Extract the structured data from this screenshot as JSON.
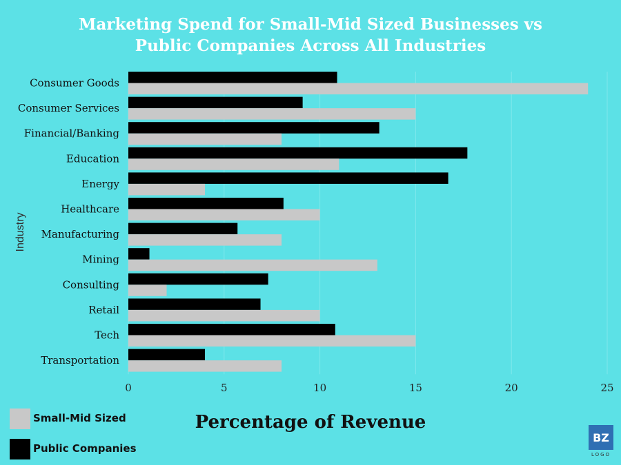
{
  "colors": {
    "background": "#5ce1e6",
    "small_mid": "#c8c8c8",
    "public": "#000000",
    "gridline": "#7fe8ec",
    "logo": "#2f6fb3"
  },
  "chart_data": {
    "type": "bar",
    "orientation": "horizontal",
    "title": "Marketing Spend for Small-Mid Sized Businesses vs Public Companies Across All Industries",
    "title_lines": [
      "Marketing Spend for Small-Mid Sized Businesses vs",
      "Public Companies Across All Industries"
    ],
    "xlabel": "Percentage of Revenue",
    "ylabel": "Industry",
    "xlim": [
      0,
      25
    ],
    "xticks": [
      0,
      5,
      10,
      15,
      20,
      25
    ],
    "grid": true,
    "legend_position": "bottom-left",
    "categories": [
      "Consumer Goods",
      "Consumer Services",
      "Financial/Banking",
      "Education",
      "Energy",
      "Healthcare",
      "Manufacturing",
      "Mining",
      "Consulting",
      "Retail",
      "Tech",
      "Transportation"
    ],
    "series": [
      {
        "name": "Public Companies",
        "color": "#000000",
        "values": [
          10.9,
          9.1,
          13.1,
          17.7,
          16.7,
          8.1,
          5.7,
          1.1,
          7.3,
          6.9,
          10.8,
          4.0
        ]
      },
      {
        "name": "Small-Mid Sized",
        "color": "#c8c8c8",
        "values": [
          24.0,
          15.0,
          8.0,
          11.0,
          4.0,
          10.0,
          8.0,
          13.0,
          2.0,
          10.0,
          15.0,
          8.0
        ]
      }
    ]
  },
  "legend": {
    "items": [
      {
        "label": "Small-Mid Sized",
        "color": "#c8c8c8"
      },
      {
        "label": "Public Companies",
        "color": "#000000"
      }
    ]
  },
  "logo": {
    "mark": "BZ",
    "sub": "LOGO"
  }
}
